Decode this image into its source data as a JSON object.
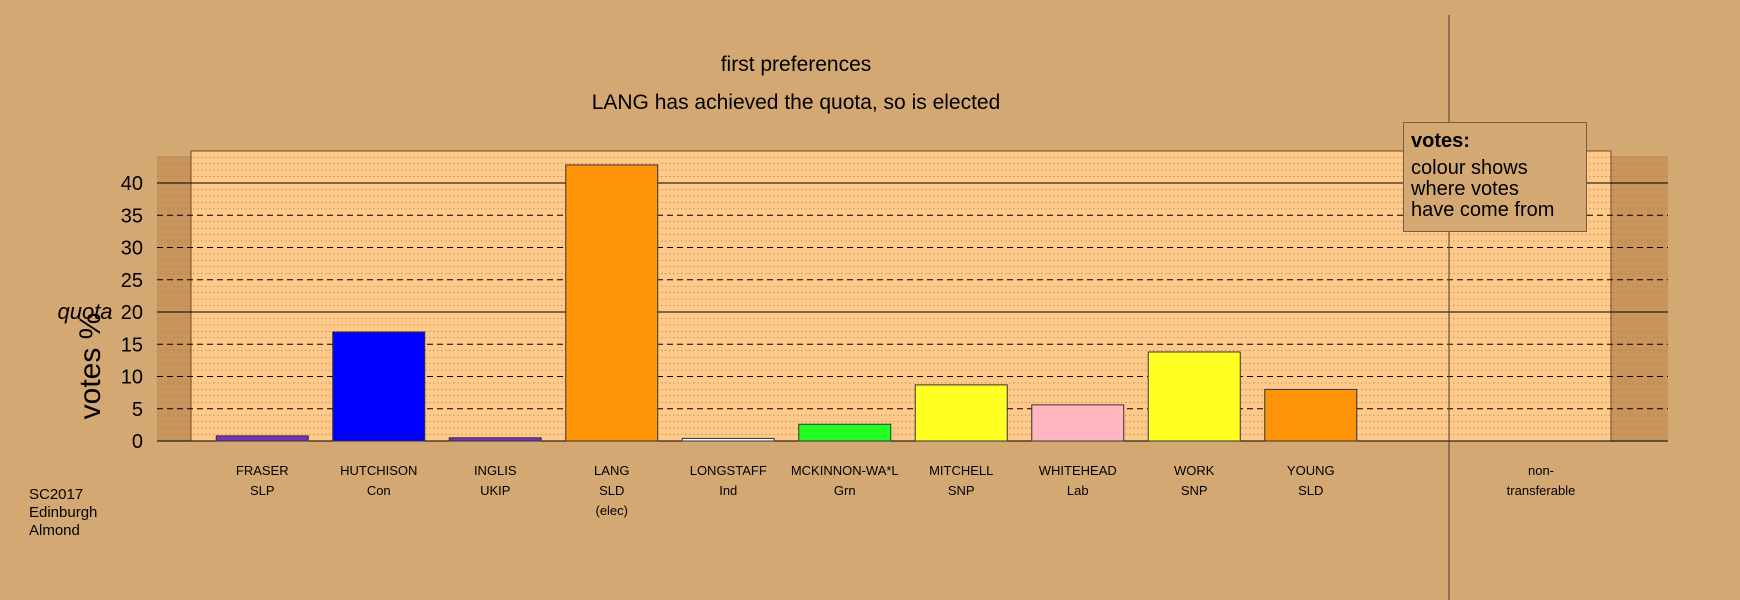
{
  "chart_data": {
    "type": "bar",
    "title": "first preferences",
    "subtitle": "LANG has achieved the quota, so is elected",
    "ylabel": "votes %",
    "quota_label": "quota",
    "quota_value": 20,
    "ylim": [
      0,
      45
    ],
    "yticks": [
      0,
      5,
      10,
      15,
      20,
      25,
      30,
      35,
      40
    ],
    "grid": true,
    "categories": [
      {
        "name": "FRASER",
        "party": "SLP",
        "note": "",
        "value": 0.8,
        "color": "#7b2fbe"
      },
      {
        "name": "HUTCHISON",
        "party": "Con",
        "note": "",
        "value": 16.9,
        "color": "#0000ff"
      },
      {
        "name": "INGLIS",
        "party": "UKIP",
        "note": "",
        "value": 0.5,
        "color": "#7b2fbe"
      },
      {
        "name": "LANG",
        "party": "SLD",
        "note": "(elec)",
        "value": 42.8,
        "color": "#ff9408"
      },
      {
        "name": "LONGSTAFF",
        "party": "Ind",
        "note": "",
        "value": 0.4,
        "color": "#ffffff"
      },
      {
        "name": "MCKINNON-WA*L",
        "party": "Grn",
        "note": "",
        "value": 2.6,
        "color": "#22ff22"
      },
      {
        "name": "MITCHELL",
        "party": "SNP",
        "note": "",
        "value": 8.7,
        "color": "#ffff22"
      },
      {
        "name": "WHITEHEAD",
        "party": "Lab",
        "note": "",
        "value": 5.6,
        "color": "#ffb6c1"
      },
      {
        "name": "WORK",
        "party": "SNP",
        "note": "",
        "value": 13.8,
        "color": "#ffff22"
      },
      {
        "name": "YOUNG",
        "party": "SLD",
        "note": "",
        "value": 8.0,
        "color": "#ff9408"
      }
    ],
    "extra_column": {
      "line1": "non-",
      "line2": "transferable",
      "value": 0
    }
  },
  "legend": {
    "title": "votes:",
    "lines": [
      "colour shows",
      "where votes",
      "have come from"
    ]
  },
  "caption": {
    "lines": [
      "SC2017",
      "Edinburgh",
      "Almond"
    ]
  },
  "colors": {
    "background": "#d4a873",
    "plot_background": "#ffc98a",
    "shaded_margin": "#c9955c"
  }
}
